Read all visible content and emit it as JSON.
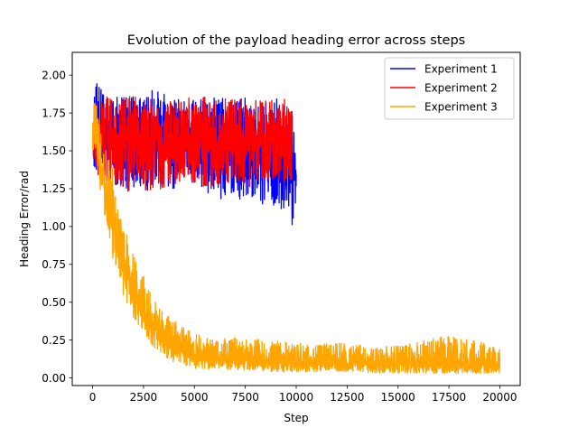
{
  "chart_data": {
    "type": "line",
    "title": "Evolution of the payload heading error across steps",
    "xlabel": "Step",
    "ylabel": "Heading Error/rad",
    "xlim": [
      -1000,
      21000
    ],
    "ylim": [
      -0.05,
      2.15
    ],
    "xticks": [
      0,
      2500,
      5000,
      7500,
      10000,
      12500,
      15000,
      17500,
      20000
    ],
    "xtick_labels": [
      "0",
      "2500",
      "5000",
      "7500",
      "10000",
      "12500",
      "15000",
      "17500",
      "20000"
    ],
    "yticks": [
      0.0,
      0.25,
      0.5,
      0.75,
      1.0,
      1.25,
      1.5,
      1.75,
      2.0
    ],
    "ytick_labels": [
      "0.00",
      "0.25",
      "0.50",
      "0.75",
      "1.00",
      "1.25",
      "1.50",
      "1.75",
      "2.00"
    ],
    "grid": false,
    "legend_position": "top-right",
    "series": [
      {
        "name": "Experiment 1",
        "color": "#0000ff",
        "x": [
          0,
          100,
          200,
          500,
          1000,
          1500,
          2000,
          2500,
          3000,
          3500,
          4000,
          4500,
          5000,
          5500,
          6000,
          6500,
          7000,
          7500,
          8000,
          8500,
          9000,
          9500,
          9800,
          10000
        ],
        "mean": [
          1.6,
          1.6,
          1.58,
          1.57,
          1.56,
          1.56,
          1.56,
          1.55,
          1.56,
          1.56,
          1.55,
          1.55,
          1.54,
          1.55,
          1.53,
          1.55,
          1.53,
          1.54,
          1.55,
          1.52,
          1.54,
          1.5,
          1.4,
          1.35
        ],
        "upper": [
          1.75,
          2.05,
          1.95,
          1.9,
          1.86,
          1.86,
          1.86,
          1.87,
          1.91,
          1.88,
          1.86,
          1.85,
          1.86,
          1.84,
          1.85,
          1.86,
          1.85,
          1.86,
          1.84,
          1.83,
          1.85,
          1.8,
          1.75,
          1.55
        ],
        "lower": [
          1.45,
          1.35,
          1.38,
          1.3,
          1.28,
          1.25,
          1.26,
          1.25,
          1.22,
          1.26,
          1.25,
          1.27,
          1.24,
          1.22,
          1.22,
          1.16,
          1.18,
          1.16,
          1.15,
          1.14,
          1.12,
          1.03,
          1.0,
          1.12
        ]
      },
      {
        "name": "Experiment 2",
        "color": "#ff0000",
        "x": [
          0,
          100,
          200,
          500,
          1000,
          1500,
          2000,
          2500,
          3000,
          3500,
          4000,
          4500,
          5000,
          5500,
          6000,
          6500,
          7000,
          7500,
          8000,
          8500,
          9000,
          9500,
          9800
        ],
        "mean": [
          1.6,
          1.65,
          1.6,
          1.58,
          1.57,
          1.57,
          1.57,
          1.56,
          1.57,
          1.56,
          1.57,
          1.56,
          1.57,
          1.56,
          1.57,
          1.56,
          1.56,
          1.57,
          1.56,
          1.56,
          1.57,
          1.56,
          1.55
        ],
        "upper": [
          1.8,
          2.02,
          1.9,
          1.86,
          1.85,
          1.86,
          1.87,
          1.86,
          1.84,
          1.86,
          1.85,
          1.85,
          1.86,
          1.88,
          1.85,
          1.86,
          1.85,
          1.86,
          1.84,
          1.85,
          1.83,
          1.87,
          1.8
        ],
        "lower": [
          1.4,
          1.42,
          1.35,
          1.28,
          1.25,
          1.22,
          1.23,
          1.24,
          1.22,
          1.26,
          1.25,
          1.28,
          1.24,
          1.26,
          1.25,
          1.28,
          1.27,
          1.26,
          1.27,
          1.29,
          1.28,
          1.3,
          1.3
        ]
      },
      {
        "name": "Experiment 3",
        "color": "#ffa500",
        "x": [
          0,
          100,
          200,
          300,
          500,
          700,
          1000,
          1200,
          1500,
          2000,
          2500,
          3000,
          3500,
          4000,
          4500,
          5000,
          5500,
          6000,
          7000,
          8000,
          9000,
          10000,
          11000,
          12000,
          13000,
          14000,
          15000,
          16000,
          17000,
          18000,
          19000,
          20000
        ],
        "mean": [
          1.62,
          1.68,
          1.6,
          1.5,
          1.35,
          1.22,
          1.05,
          0.9,
          0.78,
          0.6,
          0.45,
          0.34,
          0.26,
          0.2,
          0.17,
          0.15,
          0.14,
          0.13,
          0.12,
          0.11,
          0.11,
          0.1,
          0.1,
          0.1,
          0.1,
          0.09,
          0.09,
          0.09,
          0.09,
          0.09,
          0.09,
          0.08
        ],
        "upper": [
          1.75,
          1.85,
          1.8,
          1.7,
          1.6,
          1.5,
          1.38,
          1.2,
          1.0,
          0.85,
          0.68,
          0.52,
          0.42,
          0.4,
          0.33,
          0.3,
          0.27,
          0.25,
          0.27,
          0.26,
          0.25,
          0.23,
          0.22,
          0.24,
          0.22,
          0.2,
          0.22,
          0.24,
          0.28,
          0.27,
          0.24,
          0.2
        ],
        "lower": [
          1.45,
          1.5,
          1.4,
          1.3,
          1.15,
          0.98,
          0.78,
          0.72,
          0.55,
          0.4,
          0.28,
          0.2,
          0.14,
          0.1,
          0.08,
          0.06,
          0.06,
          0.05,
          0.05,
          0.05,
          0.04,
          0.04,
          0.04,
          0.04,
          0.04,
          0.03,
          0.03,
          0.03,
          0.03,
          0.03,
          0.03,
          0.03
        ]
      }
    ]
  }
}
